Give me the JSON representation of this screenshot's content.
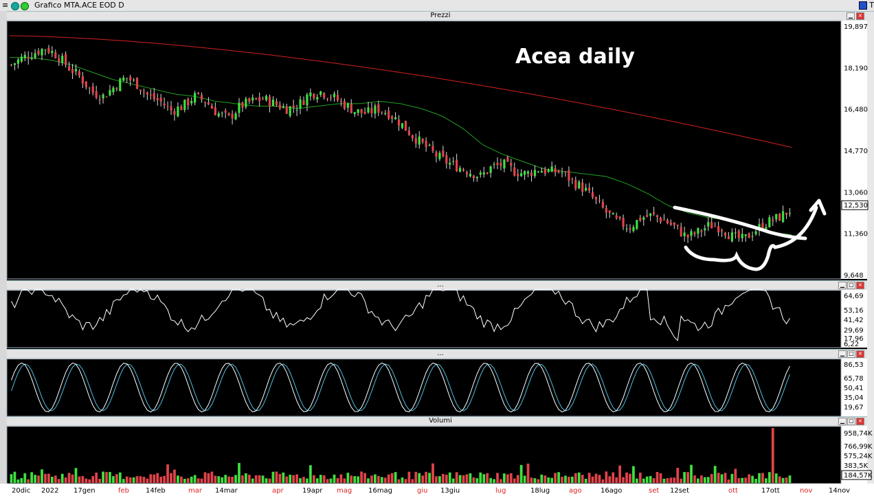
{
  "window": {
    "title": "Grafico MTA.ACE EOD D",
    "menu_icon": "hamburger-icon",
    "right_icons": "T"
  },
  "panes": {
    "price_title": "Prezzi",
    "ind1_title": "...",
    "ind2_title": "...",
    "volume_title": "Volumi"
  },
  "annotation": {
    "text": "Acea daily"
  },
  "price_axis": [
    "19,897",
    "18,190",
    "16,480",
    "14,770",
    "13,060",
    "12,530",
    "11,360",
    "9,648"
  ],
  "ind1_axis": [
    "64,69",
    "53,16",
    "41,42",
    "29,69",
    "17,96",
    "6,22"
  ],
  "ind2_axis": [
    "86,53",
    "65,78",
    "50,41",
    "35,04",
    "19,67"
  ],
  "volume_axis": [
    "958,74K",
    "766,99K",
    "575,24K",
    "383,5K",
    "184,57K"
  ],
  "time_labels": [
    {
      "text": "20dic",
      "red": false
    },
    {
      "text": "2022",
      "red": false
    },
    {
      "text": "17gen",
      "red": false
    },
    {
      "text": "feb",
      "red": true
    },
    {
      "text": "14feb",
      "red": false
    },
    {
      "text": "mar",
      "red": true
    },
    {
      "text": "14mar",
      "red": false
    },
    {
      "text": "apr",
      "red": true
    },
    {
      "text": "19apr",
      "red": false
    },
    {
      "text": "mag",
      "red": true
    },
    {
      "text": "16mag",
      "red": false
    },
    {
      "text": "giu",
      "red": true
    },
    {
      "text": "13giu",
      "red": false
    },
    {
      "text": "lug",
      "red": true
    },
    {
      "text": "18lug",
      "red": false
    },
    {
      "text": "ago",
      "red": true
    },
    {
      "text": "16ago",
      "red": false
    },
    {
      "text": "set",
      "red": true
    },
    {
      "text": "12set",
      "red": false
    },
    {
      "text": "ott",
      "red": true
    },
    {
      "text": "17ott",
      "red": false
    },
    {
      "text": "nov",
      "red": true
    },
    {
      "text": "14nov",
      "red": false
    }
  ],
  "colors": {
    "up_candle": "#3fe03f",
    "down_candle": "#e0444a",
    "ma_short": "#22a022",
    "ma_long": "#d42020",
    "annotation": "#ffffff",
    "stoch_k": "#ffffff",
    "stoch_d": "#4fc0e0"
  },
  "chart_data": {
    "type": "candlestick",
    "price_ylim": [
      9.648,
      19.897
    ],
    "close_path": [
      18.3,
      18.6,
      18.8,
      19.0,
      18.7,
      18.2,
      17.8,
      17.2,
      17.0,
      17.4,
      17.8,
      17.5,
      17.0,
      16.8,
      16.4,
      16.6,
      17.0,
      16.8,
      16.3,
      16.1,
      16.6,
      16.8,
      16.9,
      16.7,
      16.5,
      16.6,
      17.1,
      17.2,
      17.0,
      16.7,
      16.4,
      16.3,
      16.5,
      16.3,
      15.9,
      15.4,
      15.0,
      14.6,
      14.3,
      14.1,
      13.9,
      13.7,
      14.1,
      14.2,
      13.9,
      13.8,
      14.0,
      13.9,
      13.9,
      13.5,
      13.2,
      12.7,
      12.2,
      11.8,
      11.6,
      12.0,
      12.1,
      11.9,
      11.6,
      11.2,
      11.4,
      11.7,
      11.6,
      11.2,
      11.1,
      11.5,
      11.8,
      12.0,
      12.3
    ],
    "ma_short_path": [
      18.6,
      18.6,
      18.5,
      18.3,
      18.0,
      17.7,
      17.5,
      17.3,
      17.1,
      17.0,
      16.8,
      16.7,
      16.6,
      16.6,
      16.5,
      16.6,
      16.7,
      16.7,
      16.8,
      16.7,
      16.5,
      16.2,
      15.7,
      15.0,
      14.6,
      14.3,
      14.0,
      13.9,
      13.8,
      13.7,
      13.4,
      13.0,
      12.5,
      12.2,
      12.0,
      11.9,
      11.7,
      11.4,
      11.3
    ],
    "ma_long_range": [
      19.5,
      14.9
    ],
    "annotation_drawing": "hand-drawn white curves with upward arrow near latest candles"
  }
}
